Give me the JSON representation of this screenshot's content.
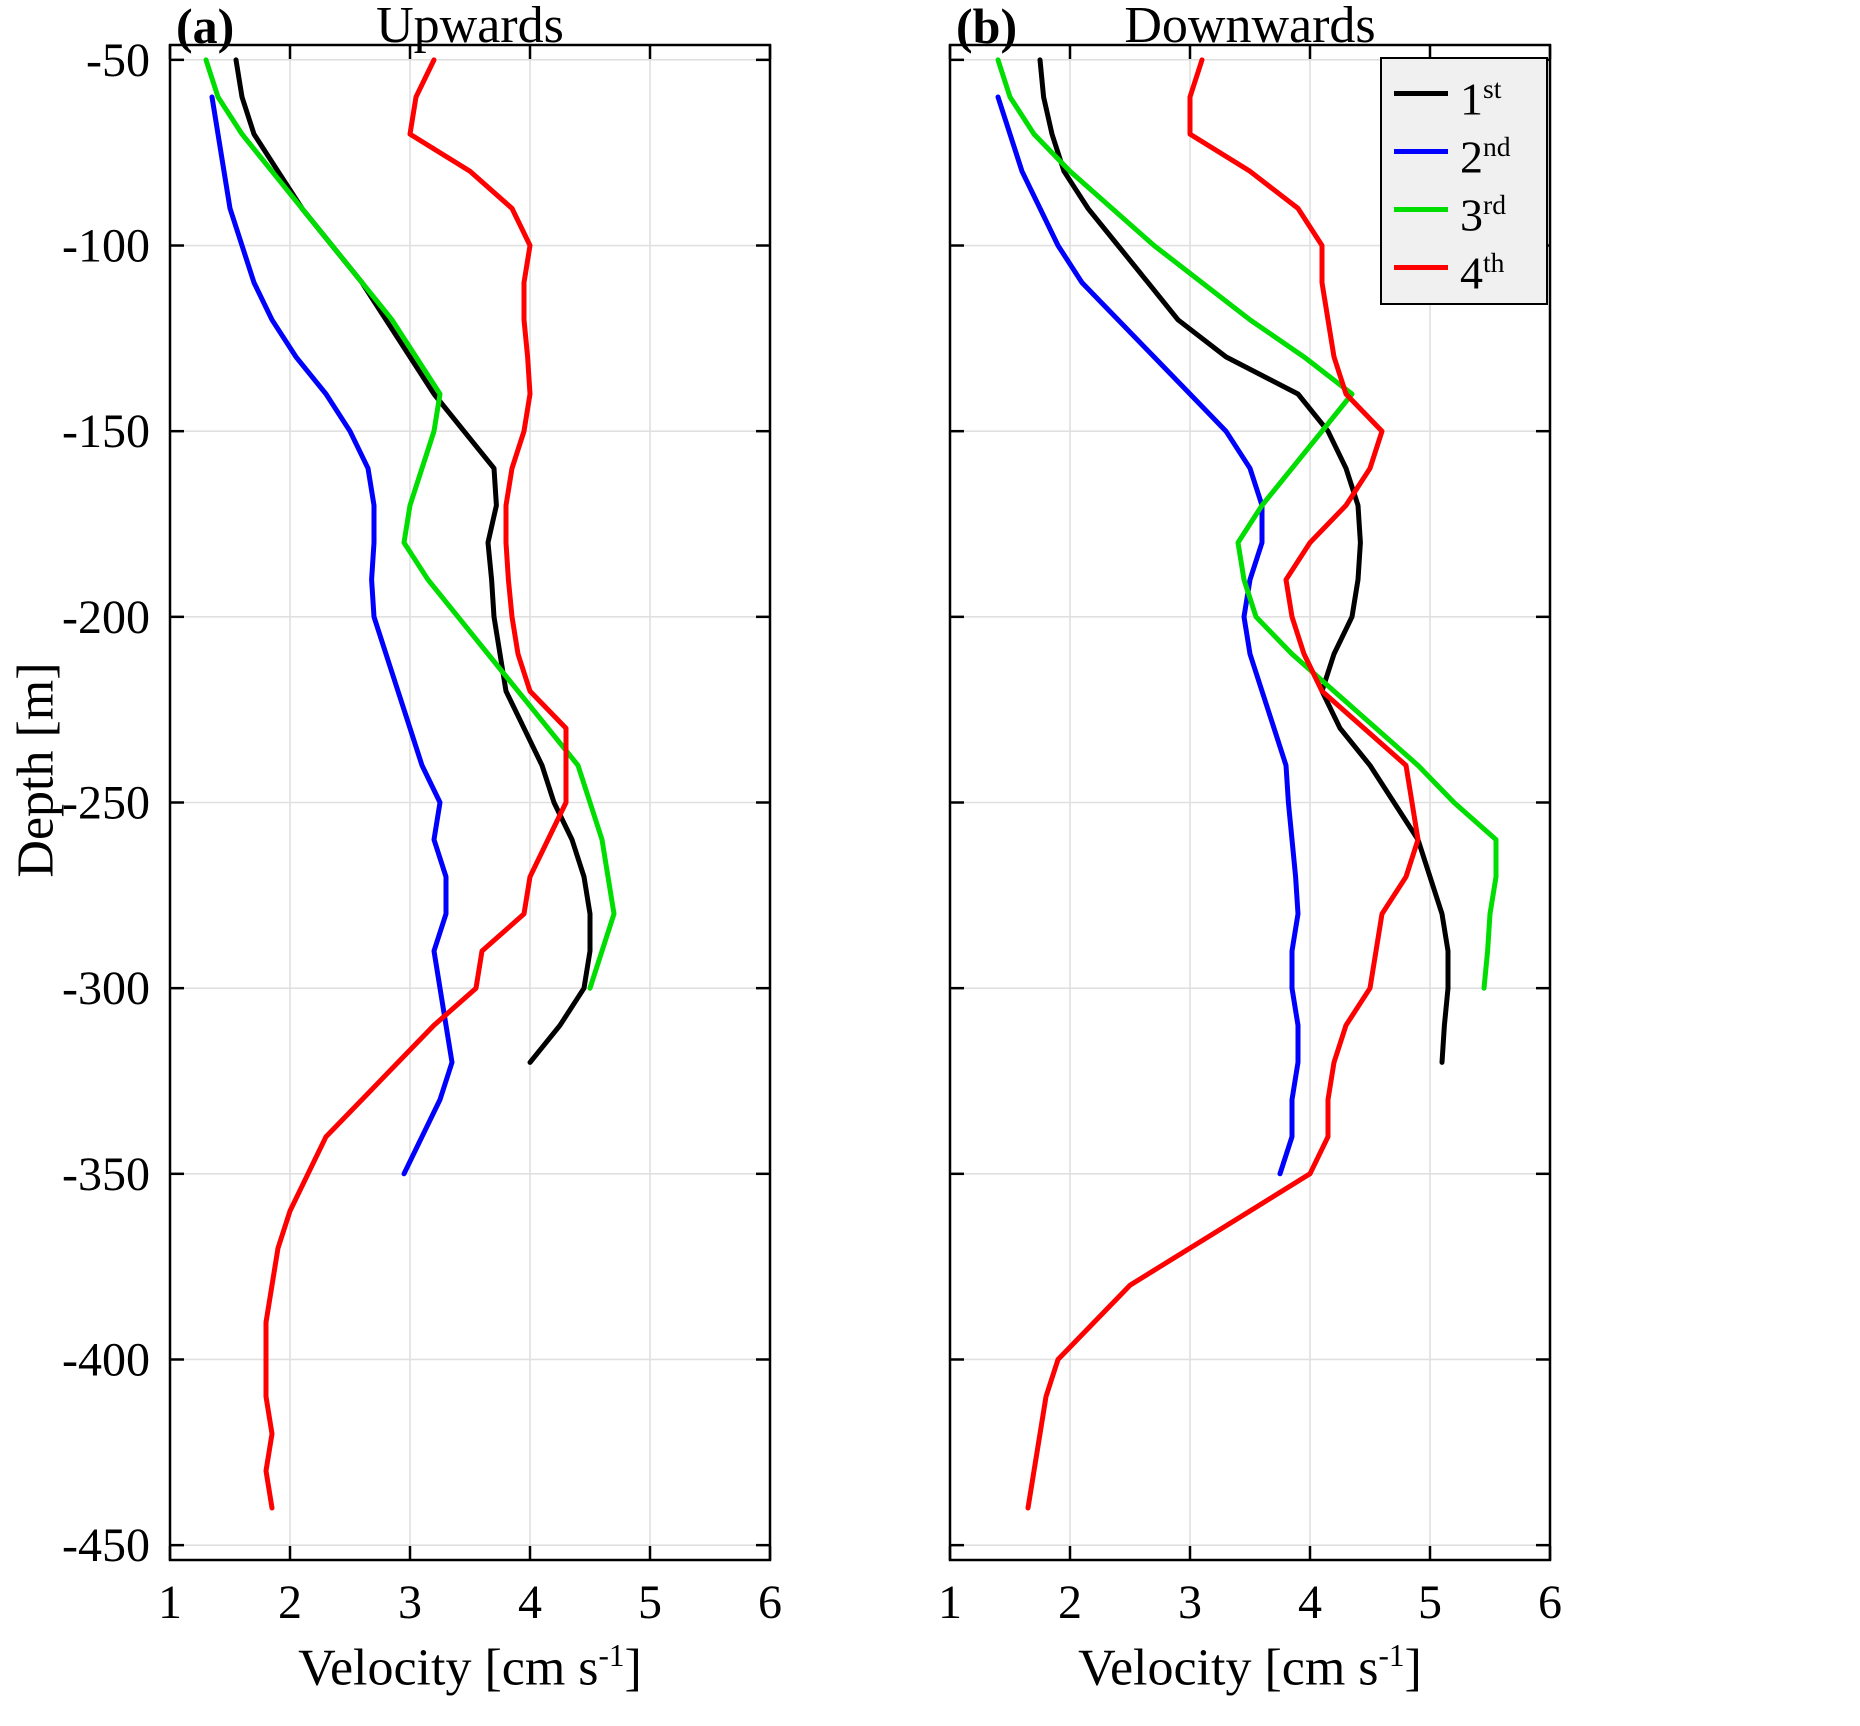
{
  "figure": {
    "background": "#ffffff",
    "grid_color": "#e0e0e0",
    "axis_color": "#000000",
    "legend_bg": "#f0f0f0"
  },
  "labels": {
    "ylabel": "Depth [m]",
    "xlabel_pre": "Velocity [cm s",
    "xlabel_sup": "-1",
    "xlabel_post": "]"
  },
  "legend": {
    "entries": [
      {
        "base": "1",
        "sup": "st"
      },
      {
        "base": "2",
        "sup": "nd"
      },
      {
        "base": "3",
        "sup": "rd"
      },
      {
        "base": "4",
        "sup": "th"
      }
    ]
  },
  "chart_data": [
    {
      "type": "line",
      "panel_label": "(a)",
      "title": "Upwards",
      "xlabel": "Velocity [cm s^-1]",
      "ylabel": "Depth [m]",
      "xlim": [
        1,
        6
      ],
      "ylim": [
        -450,
        -50
      ],
      "xticks": [
        1,
        2,
        3,
        4,
        5,
        6
      ],
      "yticks": [
        -50,
        -100,
        -150,
        -200,
        -250,
        -300,
        -350,
        -400,
        -450
      ],
      "grid": true,
      "series": [
        {
          "name": "1st",
          "color": "#000000",
          "depths": [
            -50,
            -60,
            -70,
            -80,
            -90,
            -100,
            -110,
            -120,
            -130,
            -140,
            -150,
            -160,
            -170,
            -180,
            -190,
            -200,
            -210,
            -220,
            -230,
            -240,
            -250,
            -260,
            -270,
            -280,
            -290,
            -300,
            -310,
            -320
          ],
          "velocity": [
            1.55,
            1.6,
            1.7,
            1.9,
            2.1,
            2.35,
            2.6,
            2.8,
            3.0,
            3.2,
            3.45,
            3.7,
            3.72,
            3.65,
            3.68,
            3.7,
            3.75,
            3.8,
            3.95,
            4.1,
            4.2,
            4.35,
            4.45,
            4.5,
            4.5,
            4.45,
            4.25,
            4.0
          ]
        },
        {
          "name": "2nd",
          "color": "#0000ff",
          "depths": [
            -60,
            -70,
            -80,
            -90,
            -100,
            -110,
            -120,
            -130,
            -140,
            -150,
            -160,
            -170,
            -180,
            -190,
            -200,
            -210,
            -220,
            -230,
            -240,
            -250,
            -260,
            -270,
            -280,
            -290,
            -300,
            -310,
            -320,
            -330,
            -340,
            -350
          ],
          "velocity": [
            1.35,
            1.4,
            1.45,
            1.5,
            1.6,
            1.7,
            1.85,
            2.05,
            2.3,
            2.5,
            2.65,
            2.7,
            2.7,
            2.68,
            2.7,
            2.8,
            2.9,
            3.0,
            3.1,
            3.25,
            3.2,
            3.3,
            3.3,
            3.2,
            3.25,
            3.3,
            3.35,
            3.25,
            3.1,
            2.95
          ]
        },
        {
          "name": "3rd",
          "color": "#00dd00",
          "depths": [
            -50,
            -60,
            -70,
            -80,
            -90,
            -100,
            -110,
            -120,
            -130,
            -140,
            -150,
            -160,
            -170,
            -180,
            -190,
            -200,
            -210,
            -220,
            -230,
            -240,
            -250,
            -260,
            -270,
            -280,
            -290,
            -300
          ],
          "velocity": [
            1.3,
            1.4,
            1.6,
            1.85,
            2.1,
            2.35,
            2.6,
            2.85,
            3.05,
            3.25,
            3.2,
            3.1,
            3.0,
            2.95,
            3.15,
            3.4,
            3.65,
            3.9,
            4.15,
            4.4,
            4.5,
            4.6,
            4.65,
            4.7,
            4.6,
            4.5
          ]
        },
        {
          "name": "4th",
          "color": "#ff0000",
          "depths": [
            -50,
            -60,
            -70,
            -80,
            -90,
            -100,
            -110,
            -120,
            -130,
            -140,
            -150,
            -160,
            -170,
            -180,
            -190,
            -200,
            -210,
            -220,
            -230,
            -240,
            -250,
            -260,
            -270,
            -280,
            -290,
            -300,
            -310,
            -320,
            -330,
            -340,
            -350,
            -360,
            -370,
            -380,
            -390,
            -400,
            -410,
            -420,
            -430,
            -440
          ],
          "velocity": [
            3.2,
            3.05,
            3.0,
            3.5,
            3.85,
            4.0,
            3.95,
            3.95,
            3.98,
            4.0,
            3.95,
            3.85,
            3.8,
            3.8,
            3.82,
            3.85,
            3.9,
            4.0,
            4.3,
            4.3,
            4.3,
            4.15,
            4.0,
            3.95,
            3.6,
            3.55,
            3.2,
            2.9,
            2.6,
            2.3,
            2.15,
            2.0,
            1.9,
            1.85,
            1.8,
            1.8,
            1.8,
            1.85,
            1.8,
            1.85
          ]
        }
      ]
    },
    {
      "type": "line",
      "panel_label": "(b)",
      "title": "Downwards",
      "xlabel": "Velocity [cm s^-1]",
      "ylabel": "Depth [m]",
      "xlim": [
        1,
        6
      ],
      "ylim": [
        -450,
        -50
      ],
      "xticks": [
        1,
        2,
        3,
        4,
        5,
        6
      ],
      "yticks": [
        -50,
        -100,
        -150,
        -200,
        -250,
        -300,
        -350,
        -400,
        -450
      ],
      "grid": true,
      "legend_position": "top-right",
      "series": [
        {
          "name": "1st",
          "color": "#000000",
          "depths": [
            -50,
            -60,
            -70,
            -80,
            -90,
            -100,
            -110,
            -120,
            -130,
            -140,
            -150,
            -160,
            -170,
            -180,
            -190,
            -200,
            -210,
            -220,
            -230,
            -240,
            -250,
            -260,
            -270,
            -280,
            -290,
            -300,
            -310,
            -320
          ],
          "velocity": [
            1.75,
            1.78,
            1.85,
            1.95,
            2.15,
            2.4,
            2.65,
            2.9,
            3.3,
            3.9,
            4.15,
            4.3,
            4.4,
            4.42,
            4.4,
            4.35,
            4.2,
            4.1,
            4.25,
            4.5,
            4.7,
            4.9,
            5.0,
            5.1,
            5.15,
            5.15,
            5.12,
            5.1
          ]
        },
        {
          "name": "2nd",
          "color": "#0000ff",
          "depths": [
            -60,
            -70,
            -80,
            -90,
            -100,
            -110,
            -120,
            -130,
            -140,
            -150,
            -160,
            -170,
            -180,
            -190,
            -200,
            -210,
            -220,
            -230,
            -240,
            -250,
            -260,
            -270,
            -280,
            -290,
            -300,
            -310,
            -320,
            -330,
            -340,
            -350
          ],
          "velocity": [
            1.4,
            1.5,
            1.6,
            1.75,
            1.9,
            2.1,
            2.4,
            2.7,
            3.0,
            3.3,
            3.5,
            3.6,
            3.6,
            3.5,
            3.45,
            3.5,
            3.6,
            3.7,
            3.8,
            3.82,
            3.85,
            3.88,
            3.9,
            3.85,
            3.85,
            3.9,
            3.9,
            3.85,
            3.85,
            3.75
          ]
        },
        {
          "name": "3rd",
          "color": "#00dd00",
          "depths": [
            -50,
            -60,
            -70,
            -80,
            -90,
            -100,
            -110,
            -120,
            -130,
            -140,
            -150,
            -160,
            -170,
            -180,
            -190,
            -200,
            -210,
            -220,
            -230,
            -240,
            -250,
            -260,
            -270,
            -280,
            -290,
            -300
          ],
          "velocity": [
            1.4,
            1.5,
            1.7,
            2.0,
            2.35,
            2.7,
            3.1,
            3.5,
            3.95,
            4.35,
            4.1,
            3.85,
            3.6,
            3.4,
            3.45,
            3.55,
            3.85,
            4.2,
            4.55,
            4.9,
            5.2,
            5.55,
            5.55,
            5.5,
            5.48,
            5.45
          ]
        },
        {
          "name": "4th",
          "color": "#ff0000",
          "depths": [
            -50,
            -60,
            -70,
            -80,
            -90,
            -100,
            -110,
            -120,
            -130,
            -140,
            -150,
            -160,
            -170,
            -180,
            -190,
            -200,
            -210,
            -220,
            -230,
            -240,
            -250,
            -260,
            -270,
            -280,
            -290,
            -300,
            -310,
            -320,
            -330,
            -340,
            -350,
            -360,
            -370,
            -380,
            -390,
            -400,
            -410,
            -420,
            -430,
            -440
          ],
          "velocity": [
            3.1,
            3.0,
            3.0,
            3.5,
            3.9,
            4.1,
            4.1,
            4.15,
            4.2,
            4.3,
            4.6,
            4.5,
            4.3,
            4.0,
            3.8,
            3.85,
            3.95,
            4.1,
            4.45,
            4.8,
            4.85,
            4.9,
            4.8,
            4.6,
            4.55,
            4.5,
            4.3,
            4.2,
            4.15,
            4.15,
            4.0,
            3.5,
            3.0,
            2.5,
            2.2,
            1.9,
            1.8,
            1.75,
            1.7,
            1.65
          ]
        }
      ]
    }
  ]
}
